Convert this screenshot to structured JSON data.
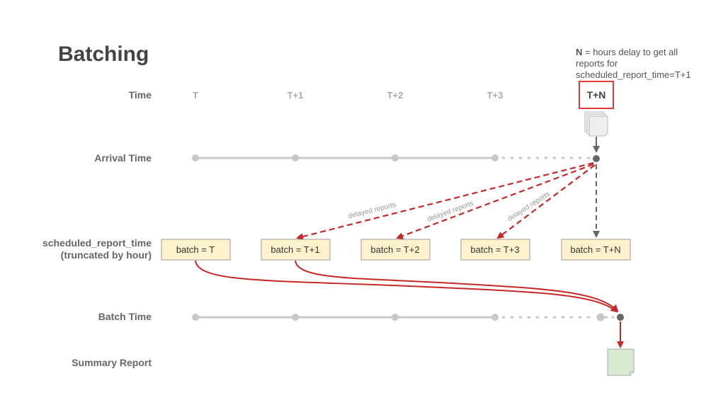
{
  "title": "Batching",
  "note": {
    "bold": "N",
    "line1": " = hours delay to get all",
    "line2": "reports for",
    "line3": "scheduled_report_time=T+1"
  },
  "rows": {
    "time": "Time",
    "arrival": "Arrival Time",
    "scheduled_line1": "scheduled_report_time",
    "scheduled_line2": "(truncated by hour)",
    "batch_time": "Batch Time",
    "summary": "Summary Report"
  },
  "time_ticks": [
    "T",
    "T+1",
    "T+2",
    "T+3",
    "T+N"
  ],
  "batches": [
    "batch = T",
    "batch = T+1",
    "batch = T+2",
    "batch = T+3",
    "batch = T+N"
  ],
  "delayed_label": "delayed reports",
  "colors": {
    "accent_red": "#c62828",
    "highlight_box": "#e53935",
    "batch_fill": "#fff2cc",
    "summary_fill": "#d9ead3",
    "timeline": "#c8c8c8",
    "dark_dot": "#666666"
  }
}
